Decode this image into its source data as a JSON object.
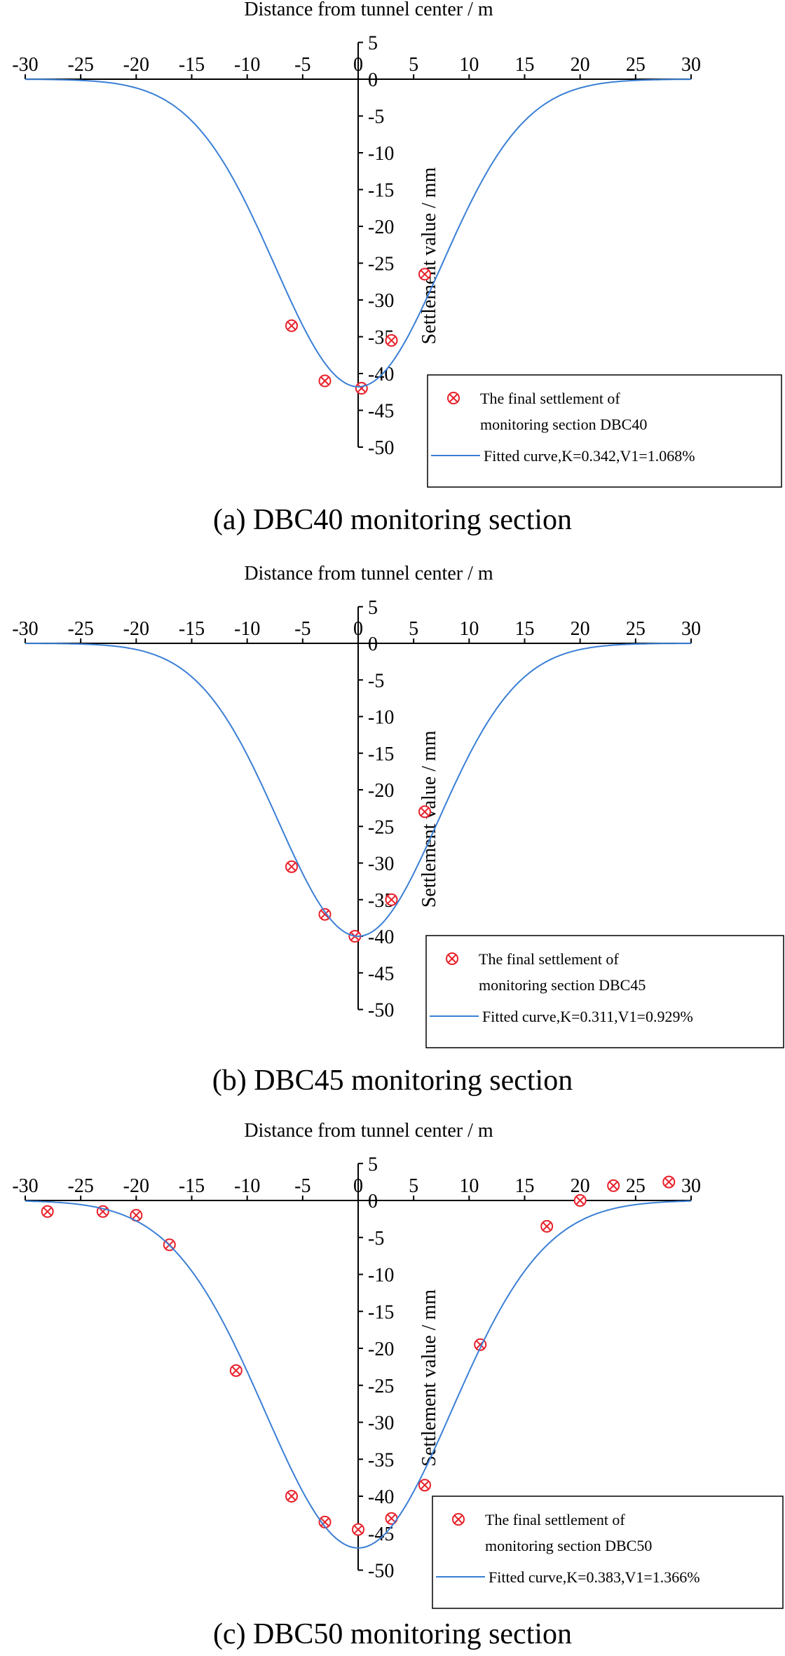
{
  "chart_data": [
    {
      "type": "scatter",
      "caption": "(a) DBC40 monitoring section",
      "xlabel": "Distance from tunnel center / m",
      "ylabel": "Settlement value / mm",
      "xlim": [
        -30,
        30
      ],
      "ylim": [
        -50,
        5
      ],
      "x_ticks": [
        "-30",
        "-25",
        "-20",
        "-15",
        "-10",
        "-5",
        "0",
        "5",
        "10",
        "15",
        "20",
        "25",
        "30"
      ],
      "y_ticks": [
        "5",
        "0",
        "-5",
        "-10",
        "-15",
        "-20",
        "-25",
        "-30",
        "-35",
        "-40",
        "-45",
        "-50"
      ],
      "series": [
        {
          "name": "The final settlement of monitoring section DBC40",
          "kind": "markers",
          "color": "#e8202a",
          "x": [
            -6,
            -3,
            0.3,
            3,
            6
          ],
          "y": [
            -33.5,
            -41,
            -42,
            -35.5,
            -26.5
          ]
        },
        {
          "name": "Fitted curve,K=0.342,V1=1.068%",
          "kind": "gaussian-curve",
          "color": "#3a7fd5",
          "smax": -41.8,
          "i": 7.5
        }
      ],
      "legend": {
        "marker_label_line1": "The final settlement of",
        "marker_label_line2": "monitoring section DBC40",
        "curve_label": "Fitted curve,K=0.342,V1=1.068%",
        "position": "bottom-right"
      }
    },
    {
      "type": "scatter",
      "caption": "(b) DBC45 monitoring section",
      "xlabel": "Distance from tunnel center / m",
      "ylabel": "Settlement value / mm",
      "xlim": [
        -30,
        30
      ],
      "ylim": [
        -50,
        5
      ],
      "x_ticks": [
        "-30",
        "-25",
        "-20",
        "-15",
        "-10",
        "-5",
        "0",
        "5",
        "10",
        "15",
        "20",
        "25",
        "30"
      ],
      "y_ticks": [
        "5",
        "0",
        "-5",
        "-10",
        "-15",
        "-20",
        "-25",
        "-30",
        "-35",
        "-40",
        "-45",
        "-50"
      ],
      "series": [
        {
          "name": "The final settlement of monitoring section DBC45",
          "kind": "markers",
          "color": "#e8202a",
          "x": [
            -6,
            -3,
            -0.3,
            3,
            6
          ],
          "y": [
            -30.5,
            -37,
            -40,
            -35,
            -23
          ]
        },
        {
          "name": "Fitted curve,K=0.311,V1=0.929%",
          "kind": "gaussian-curve",
          "color": "#3a7fd5",
          "smax": -40,
          "i": 7.2
        }
      ],
      "legend": {
        "marker_label_line1": "The final settlement of",
        "marker_label_line2": "monitoring section DBC45",
        "curve_label": "Fitted curve,K=0.311,V1=0.929%",
        "position": "bottom-right"
      }
    },
    {
      "type": "scatter",
      "caption": "(c) DBC50 monitoring section",
      "xlabel": "Distance from tunnel center / m",
      "ylabel": "Settlement value / mm",
      "xlim": [
        -30,
        30
      ],
      "ylim": [
        -50,
        5
      ],
      "x_ticks": [
        "-30",
        "-25",
        "-20",
        "-15",
        "-10",
        "-5",
        "0",
        "5",
        "10",
        "15",
        "20",
        "25",
        "30"
      ],
      "y_ticks": [
        "5",
        "0",
        "-5",
        "-10",
        "-15",
        "-20",
        "-25",
        "-30",
        "-35",
        "-40",
        "-45",
        "-50"
      ],
      "series": [
        {
          "name": "The final settlement of monitoring section DBC50",
          "kind": "markers",
          "color": "#e8202a",
          "x": [
            -28,
            -23,
            -20,
            -17,
            -11,
            -6,
            -3,
            0,
            3,
            6,
            11,
            17,
            20,
            23,
            28
          ],
          "y": [
            -1.5,
            -1.5,
            -2,
            -6,
            -23,
            -40,
            -43.5,
            -44.5,
            -43,
            -38.5,
            -19.5,
            -3.5,
            0,
            2,
            2.5
          ]
        },
        {
          "name": "Fitted curve,K=0.383,V1=1.366%",
          "kind": "gaussian-curve",
          "color": "#3a7fd5",
          "smax": -47,
          "i": 8.4
        }
      ],
      "legend": {
        "marker_label_line1": "The final settlement of",
        "marker_label_line2": "monitoring section DBC50",
        "curve_label": "Fitted curve,K=0.383,V1=1.366%",
        "position": "bottom-right"
      }
    }
  ]
}
